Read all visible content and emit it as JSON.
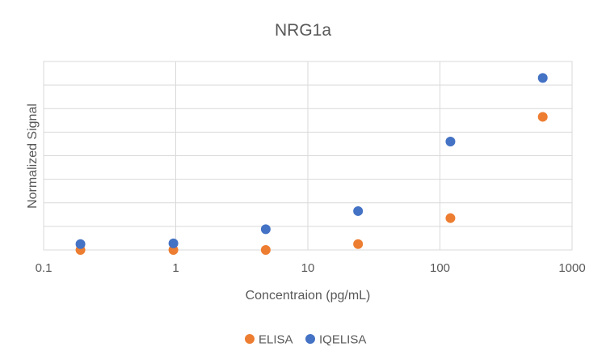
{
  "chart_data": {
    "type": "scatter",
    "title": "NRG1a",
    "xlabel": "Concentraion (pg/mL)",
    "ylabel": "Normalized Signal",
    "x_scale": "log",
    "xlim": [
      0.1,
      1000
    ],
    "x_ticks": [
      0.1,
      1,
      10,
      100,
      1000
    ],
    "x_tick_labels": [
      "0.1",
      "1",
      "10",
      "100",
      "1000"
    ],
    "ylim": [
      0,
      8
    ],
    "y_tick_labels_shown": false,
    "grid": true,
    "legend": "bottom",
    "series": [
      {
        "name": "ELISA",
        "color": "#ED7D31",
        "x": [
          0.19,
          0.96,
          4.8,
          24,
          120,
          600
        ],
        "y": [
          0.0,
          0.0,
          0.0,
          0.25,
          1.35,
          5.65
        ]
      },
      {
        "name": "IQELISA",
        "color": "#4472C4",
        "x": [
          0.19,
          0.96,
          4.8,
          24,
          120,
          600
        ],
        "y": [
          0.25,
          0.28,
          0.88,
          1.65,
          4.6,
          7.3
        ]
      }
    ]
  }
}
